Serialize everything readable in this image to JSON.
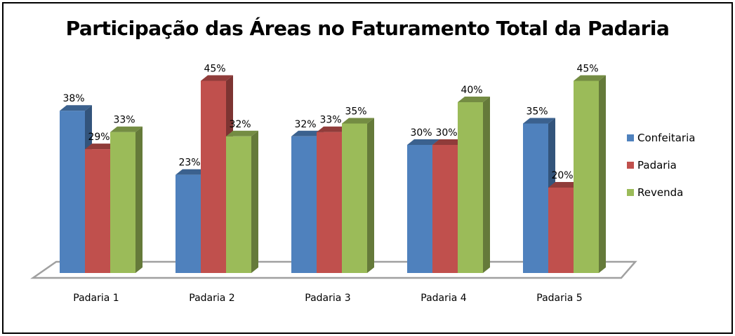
{
  "chart_data": {
    "type": "bar",
    "title": "Participação das Áreas no Faturamento Total da Padaria",
    "categories": [
      "Padaria 1",
      "Padaria 2",
      "Padaria 3",
      "Padaria 4",
      "Padaria 5"
    ],
    "series": [
      {
        "name": "Confeitaria",
        "color": "#4F81BD",
        "values": [
          38,
          23,
          32,
          30,
          35
        ]
      },
      {
        "name": "Padaria",
        "color": "#C0504D",
        "values": [
          29,
          45,
          33,
          30,
          20
        ]
      },
      {
        "name": "Revenda",
        "color": "#9BBB59",
        "values": [
          33,
          32,
          35,
          40,
          45
        ]
      }
    ],
    "value_format": "{v}%",
    "xlabel": "",
    "ylabel": "",
    "ylim": [
      0,
      50
    ],
    "grid": false,
    "legend": "right"
  }
}
